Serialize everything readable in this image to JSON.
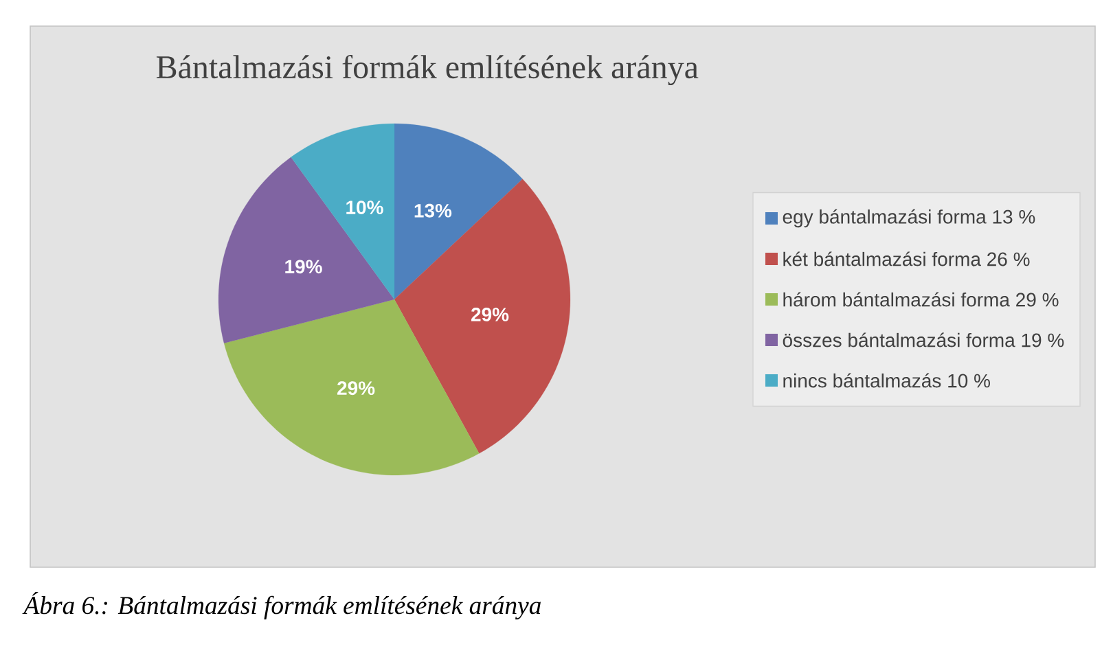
{
  "chart_data": {
    "type": "pie",
    "title": "Bántalmazási formák említésének aránya",
    "categories": [
      "egy bántalmazási forma 13 %",
      "két bántalmazási forma 26 %",
      "három bántalmazási forma 29 %",
      "összes bántalmazási forma 19 %",
      "nincs bántalmazás 10 %"
    ],
    "values": [
      13,
      29,
      29,
      19,
      10
    ],
    "value_labels": [
      "13%",
      "29%",
      "29%",
      "19%",
      "10%"
    ],
    "colors": [
      "#4f81bd",
      "#c0504d",
      "#9bbb59",
      "#8064a2",
      "#4bacc6"
    ],
    "legend": "right",
    "annotations": [
      "Ábra 6.: Bántalmazási formák említésének aránya"
    ]
  }
}
